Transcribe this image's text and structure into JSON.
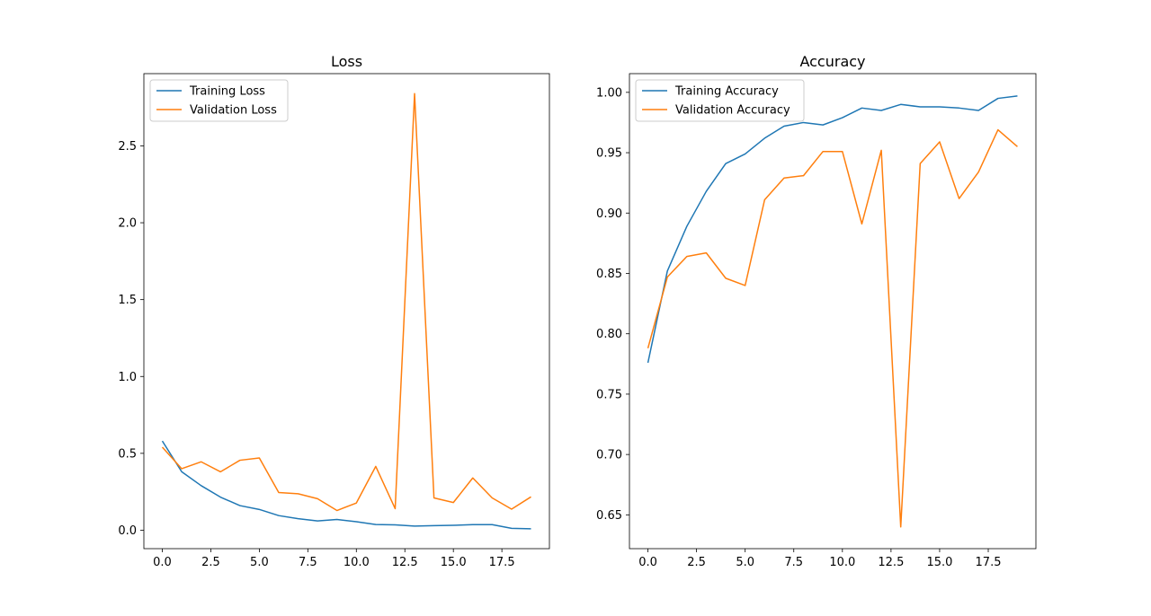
{
  "chart_data": [
    {
      "type": "line",
      "title": "Loss",
      "xlabel": "",
      "ylabel": "",
      "xlim": [
        -0.95,
        19.95
      ],
      "ylim": [
        -0.12,
        2.97
      ],
      "x_ticks": [
        0,
        2.5,
        5,
        7.5,
        10,
        12.5,
        15,
        17.5
      ],
      "x_tick_labels": [
        "0.0",
        "2.5",
        "5.0",
        "7.5",
        "10.0",
        "12.5",
        "15.0",
        "17.5"
      ],
      "y_ticks": [
        0,
        0.5,
        1,
        1.5,
        2,
        2.5
      ],
      "y_tick_labels": [
        "0.0",
        "0.5",
        "1.0",
        "1.5",
        "2.0",
        "2.5"
      ],
      "grid": false,
      "legend_position": "upper-left",
      "x": [
        0,
        1,
        2,
        3,
        4,
        5,
        6,
        7,
        8,
        9,
        10,
        11,
        12,
        13,
        14,
        15,
        16,
        17,
        18,
        19
      ],
      "series": [
        {
          "name": "Training Loss",
          "color": "#1f77b4",
          "values": [
            0.58,
            0.38,
            0.29,
            0.215,
            0.16,
            0.135,
            0.095,
            0.075,
            0.06,
            0.07,
            0.055,
            0.037,
            0.035,
            0.027,
            0.03,
            0.032,
            0.036,
            0.036,
            0.012,
            0.009
          ]
        },
        {
          "name": "Validation Loss",
          "color": "#ff7f0e",
          "values": [
            0.54,
            0.4,
            0.445,
            0.38,
            0.455,
            0.47,
            0.245,
            0.237,
            0.205,
            0.128,
            0.177,
            0.415,
            0.14,
            2.84,
            0.21,
            0.18,
            0.34,
            0.21,
            0.137,
            0.217
          ]
        }
      ]
    },
    {
      "type": "line",
      "title": "Accuracy",
      "xlabel": "",
      "ylabel": "",
      "xlim": [
        -0.95,
        19.95
      ],
      "ylim": [
        0.622,
        1.0155
      ],
      "x_ticks": [
        0,
        2.5,
        5,
        7.5,
        10,
        12.5,
        15,
        17.5
      ],
      "x_tick_labels": [
        "0.0",
        "2.5",
        "5.0",
        "7.5",
        "10.0",
        "12.5",
        "15.0",
        "17.5"
      ],
      "y_ticks": [
        0.65,
        0.7,
        0.75,
        0.8,
        0.85,
        0.9,
        0.95,
        1.0
      ],
      "y_tick_labels": [
        "0.65",
        "0.70",
        "0.75",
        "0.80",
        "0.85",
        "0.90",
        "0.95",
        "1.00"
      ],
      "grid": false,
      "legend_position": "upper-left",
      "x": [
        0,
        1,
        2,
        3,
        4,
        5,
        6,
        7,
        8,
        9,
        10,
        11,
        12,
        13,
        14,
        15,
        16,
        17,
        18,
        19
      ],
      "series": [
        {
          "name": "Training Accuracy",
          "color": "#1f77b4",
          "values": [
            0.776,
            0.852,
            0.889,
            0.918,
            0.941,
            0.949,
            0.962,
            0.972,
            0.975,
            0.973,
            0.979,
            0.987,
            0.985,
            0.99,
            0.988,
            0.988,
            0.987,
            0.985,
            0.995,
            0.997
          ]
        },
        {
          "name": "Validation Accuracy",
          "color": "#ff7f0e",
          "values": [
            0.788,
            0.847,
            0.864,
            0.867,
            0.846,
            0.84,
            0.911,
            0.929,
            0.931,
            0.951,
            0.951,
            0.891,
            0.952,
            0.64,
            0.941,
            0.959,
            0.912,
            0.934,
            0.969,
            0.955
          ]
        }
      ]
    }
  ]
}
